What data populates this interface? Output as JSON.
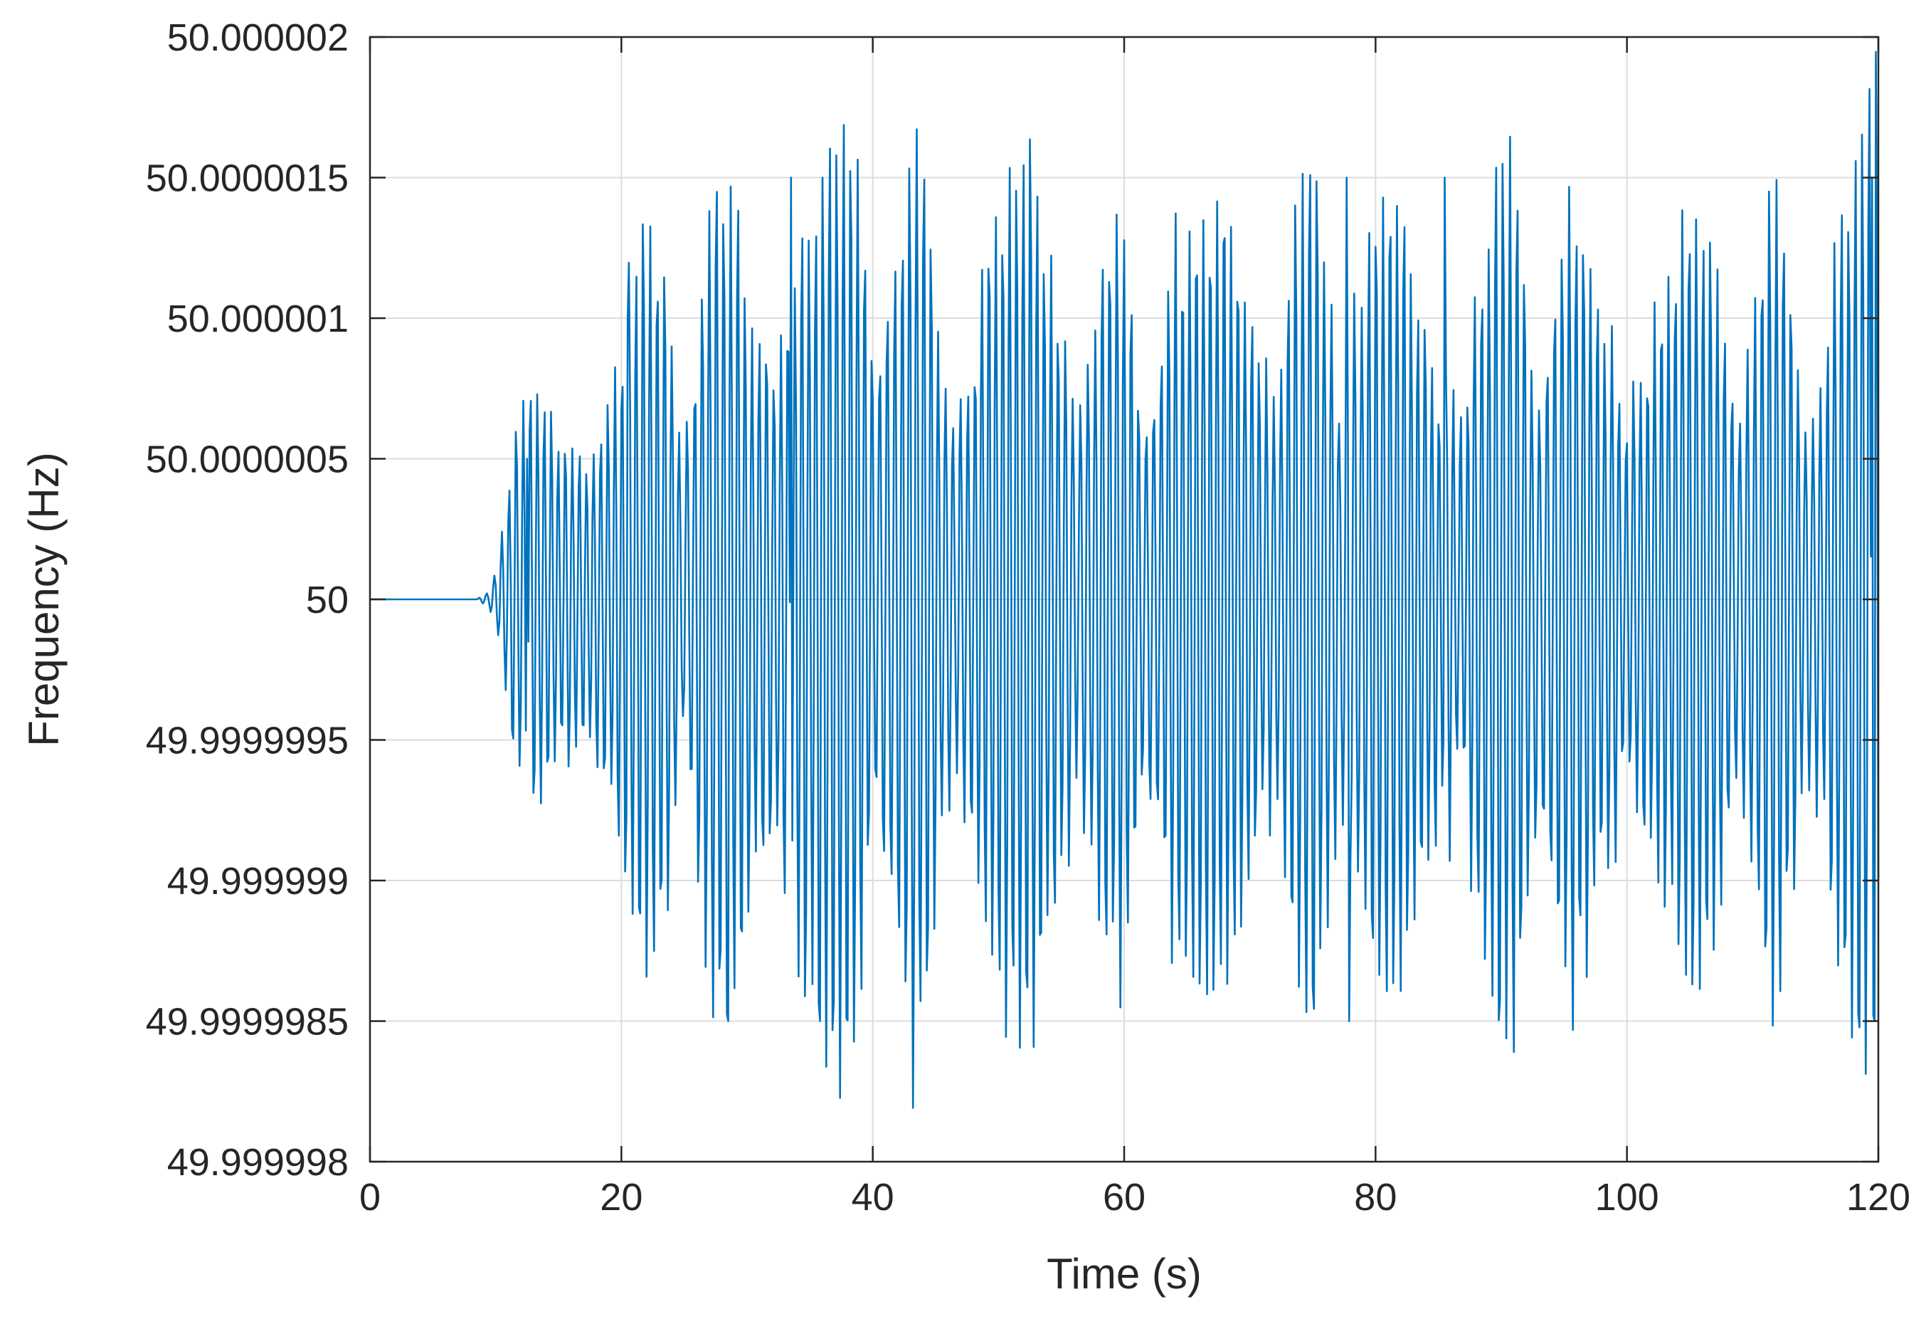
{
  "chart_data": {
    "type": "line",
    "title": "",
    "xlabel": "Time (s)",
    "ylabel": "Frequency (Hz)",
    "xlim": [
      0,
      120
    ],
    "ylim": [
      49.999998,
      50.000002
    ],
    "grid": true,
    "legend": "none",
    "x_ticks": [
      "0",
      "20",
      "40",
      "60",
      "80",
      "100",
      "120"
    ],
    "y_ticks": [
      "49.999998",
      "49.9999985",
      "49.999999",
      "49.9999995",
      "50",
      "50.0000005",
      "50.000001",
      "50.0000015",
      "50.000002"
    ],
    "series": [
      {
        "color": "#0072BD",
        "sample_interval_s": 0.1,
        "oscillation_start_s": 8.5,
        "dominant_period_s": 0.57,
        "peak_points": [
          {
            "t": 12.5,
            "f": 50.0000005
          },
          {
            "t": 20.5,
            "f": 50.0000012
          },
          {
            "t": 28.5,
            "f": 49.9999985
          },
          {
            "t": 33.5,
            "f": 50.0000016
          },
          {
            "t": 35.8,
            "f": 49.9999984
          },
          {
            "t": 36.0,
            "f": 50.0000016
          },
          {
            "t": 77.7,
            "f": 50.0000017
          },
          {
            "t": 77.9,
            "f": 49.9999984
          },
          {
            "t": 85.5,
            "f": 50.0000017
          },
          {
            "t": 119.5,
            "f": 50.0000017
          },
          {
            "t": 119.7,
            "f": 49.9999983
          }
        ],
        "envelope": [
          {
            "t": 0,
            "a": 0.0
          },
          {
            "t": 8.5,
            "a": 0.0
          },
          {
            "t": 9.5,
            "a": 4e-08
          },
          {
            "t": 10.5,
            "a": 2.5e-07
          },
          {
            "t": 11.5,
            "a": 5e-07
          },
          {
            "t": 15,
            "a": 7e-07
          },
          {
            "t": 20,
            "a": 1e-06
          },
          {
            "t": 25,
            "a": 1.1e-06
          },
          {
            "t": 30,
            "a": 1.3e-06
          },
          {
            "t": 35,
            "a": 1.4e-06
          },
          {
            "t": 40,
            "a": 1.3e-06
          },
          {
            "t": 45,
            "a": 1.3e-06
          },
          {
            "t": 50,
            "a": 1.2e-06
          },
          {
            "t": 55,
            "a": 1.2e-06
          },
          {
            "t": 60,
            "a": 1.1e-06
          },
          {
            "t": 65,
            "a": 1.1e-06
          },
          {
            "t": 70,
            "a": 1.2e-06
          },
          {
            "t": 75,
            "a": 1.2e-06
          },
          {
            "t": 80,
            "a": 1.2e-06
          },
          {
            "t": 85,
            "a": 1.3e-06
          },
          {
            "t": 90,
            "a": 1.3e-06
          },
          {
            "t": 95,
            "a": 1.2e-06
          },
          {
            "t": 100,
            "a": 1.1e-06
          },
          {
            "t": 105,
            "a": 1.1e-06
          },
          {
            "t": 110,
            "a": 1.1e-06
          },
          {
            "t": 115,
            "a": 1.2e-06
          },
          {
            "t": 120,
            "a": 1.5e-06
          }
        ]
      }
    ]
  }
}
